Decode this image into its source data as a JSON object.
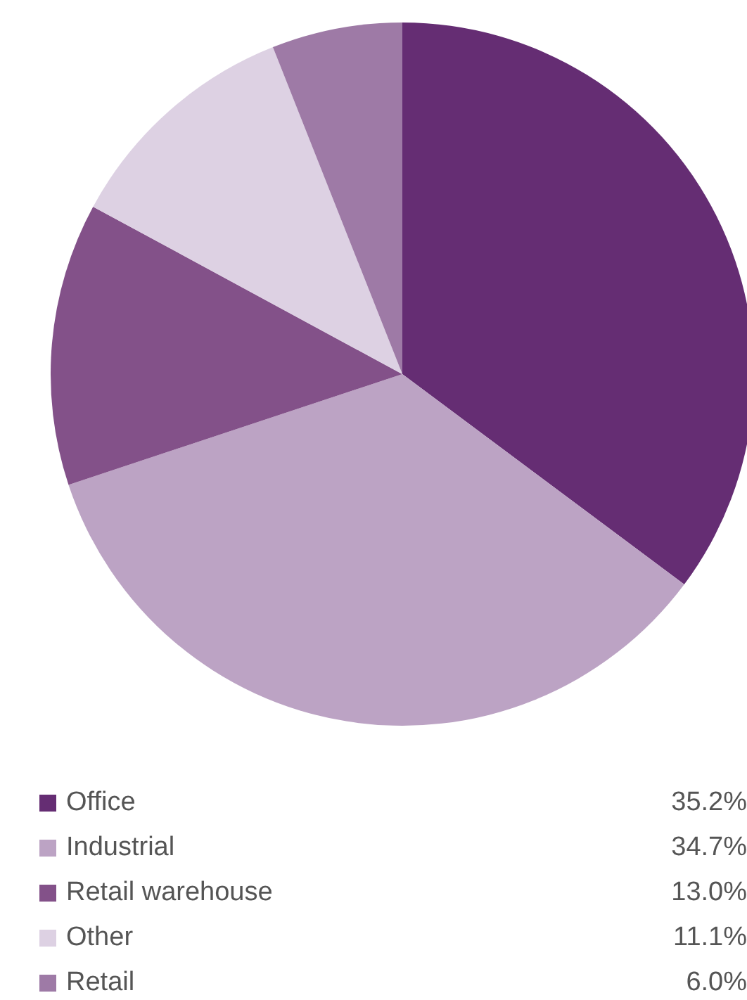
{
  "chart_data": {
    "type": "pie",
    "categories": [
      "Office",
      "Industrial",
      "Retail warehouse",
      "Other",
      "Retail"
    ],
    "values": [
      35.2,
      34.7,
      13.0,
      11.1,
      6.0
    ],
    "colors": [
      "#652d73",
      "#bca3c4",
      "#835189",
      "#ddd1e3",
      "#9e7aa6"
    ],
    "value_labels": [
      "35.2%",
      "34.7%",
      "13.0%",
      "11.1%",
      "6.0%"
    ],
    "legend": "bottom"
  }
}
